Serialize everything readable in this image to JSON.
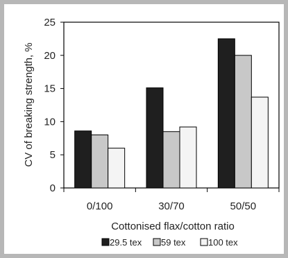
{
  "chart_data": {
    "type": "bar",
    "title": "",
    "xlabel": "Cottonised flax/cotton ratio",
    "ylabel": "CV of breaking strength, %",
    "categories": [
      "0/100",
      "30/70",
      "50/50"
    ],
    "series": [
      {
        "name": "29.5 tex",
        "values": [
          8.6,
          15.1,
          22.5
        ],
        "color": "#1f1f1f"
      },
      {
        "name": "59 tex",
        "values": [
          8.0,
          8.5,
          20.0
        ],
        "color": "#c8c8c8"
      },
      {
        "name": "100 tex",
        "values": [
          6.0,
          9.2,
          13.7
        ],
        "color": "#f4f4f4"
      }
    ],
    "ylim": [
      0,
      25
    ],
    "yticks": [
      "0",
      "5",
      "10",
      "15",
      "20",
      "25"
    ],
    "grid": false,
    "legend_position": "bottom",
    "frame_color": "#b7b7b7"
  }
}
